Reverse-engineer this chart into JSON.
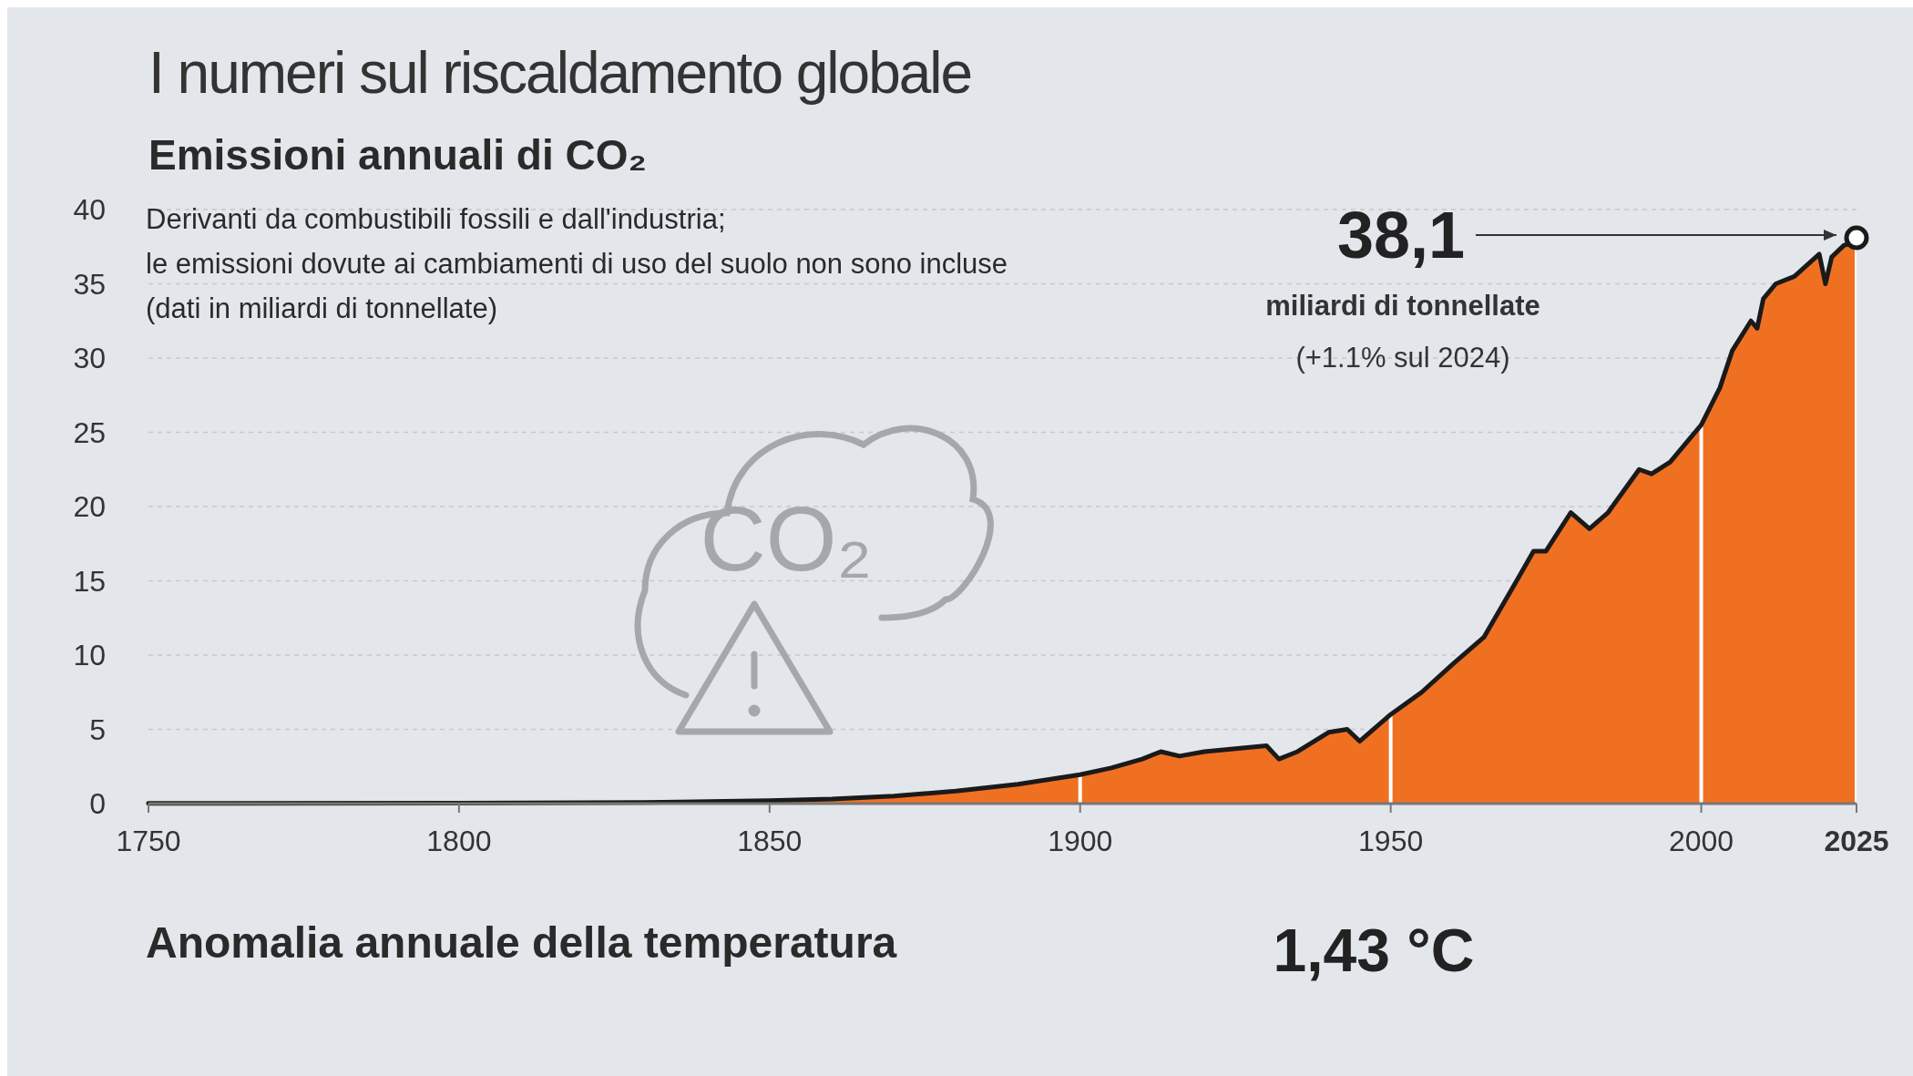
{
  "chart_data": [
    {
      "type": "area",
      "title": "I numeri sul riscaldamento globale",
      "subtitle": "Emissioni annuali di CO₂",
      "annotations": [
        "Derivanti da combustibili fossili e dall'industria;",
        "le emissioni dovute ai cambiamenti di uso del suolo non sono incluse",
        "(dati in miliardi di tonnellate)",
        "38,1",
        "miliardi di tonnellate",
        "(+1.1% sul 2024)",
        "CO₂"
      ],
      "x": [
        1750,
        1800,
        1830,
        1850,
        1860,
        1870,
        1880,
        1890,
        1900,
        1905,
        1910,
        1913,
        1916,
        1920,
        1925,
        1930,
        1932,
        1935,
        1940,
        1943,
        1945,
        1950,
        1955,
        1960,
        1965,
        1970,
        1973,
        1975,
        1979,
        1982,
        1985,
        1990,
        1992,
        1995,
        1998,
        2000,
        2003,
        2005,
        2008,
        2009,
        2010,
        2012,
        2015,
        2019,
        2020,
        2021,
        2022,
        2023,
        2024,
        2025
      ],
      "series": [
        {
          "color": "#f07022",
          "values": [
            0.01,
            0.03,
            0.08,
            0.2,
            0.3,
            0.5,
            0.85,
            1.3,
            1.95,
            2.4,
            3.0,
            3.5,
            3.2,
            3.5,
            3.7,
            3.9,
            3.0,
            3.5,
            4.8,
            5.0,
            4.2,
            6.0,
            7.5,
            9.4,
            11.2,
            14.8,
            17.0,
            17.0,
            19.6,
            18.5,
            19.6,
            22.5,
            22.2,
            23.0,
            24.5,
            25.5,
            28.0,
            30.5,
            32.5,
            32.0,
            34.0,
            35.0,
            35.5,
            37.0,
            35.0,
            36.8,
            37.2,
            37.6,
            37.7,
            38.1
          ]
        }
      ],
      "xlim": [
        1750,
        2025
      ],
      "xticks": [
        1750,
        1800,
        1850,
        1900,
        1950,
        2000,
        2025
      ],
      "ylim": [
        0,
        40
      ],
      "yticks": [
        0,
        5,
        10,
        15,
        20,
        25,
        30,
        35,
        40
      ],
      "grid": true
    },
    {
      "type": "other",
      "title": "Anomalia annuale della temperatura",
      "annotations": [
        "1,43 °C"
      ]
    }
  ]
}
